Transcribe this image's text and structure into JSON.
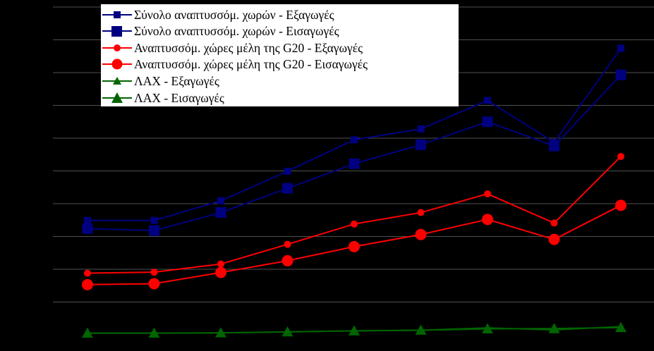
{
  "chart_data": {
    "type": "line",
    "title": "",
    "xlabel": "",
    "ylabel": "",
    "x": [
      "1",
      "2",
      "3",
      "4",
      "5",
      "6",
      "7",
      "8",
      "9"
    ],
    "ylim": [
      0,
      100
    ],
    "grid": true,
    "legend_position": "top-left",
    "series": [
      {
        "name": "Σύνολο αναπτυσσόμ. χωρών - Εξαγωγές",
        "values": [
          34.9,
          34.9,
          40.9,
          49.9,
          59.5,
          62.8,
          71.5,
          58.7,
          87.4
        ],
        "color": "#000080",
        "marker": "square-small"
      },
      {
        "name": "Σύνολο αναπτυσσόμ. χωρών - Εισαγωγές",
        "values": [
          32.4,
          31.8,
          37.3,
          44.7,
          52.2,
          58.0,
          65.0,
          57.6,
          79.3
        ],
        "color": "#000080",
        "marker": "square-large"
      },
      {
        "name": "Αναπτυσσόμ. χώρες μέλη της G20 - Εξαγωγές",
        "values": [
          18.8,
          19.1,
          21.6,
          27.6,
          33.8,
          37.3,
          43.0,
          34.1,
          54.4
        ],
        "color": "#ff0000",
        "marker": "circle-small"
      },
      {
        "name": "Αναπτυσσόμ. χώρες μέλη της G20 - Εισαγωγές",
        "values": [
          15.3,
          15.6,
          19.0,
          22.6,
          26.9,
          30.6,
          35.2,
          29.1,
          39.5
        ],
        "color": "#ff0000",
        "marker": "circle-large"
      },
      {
        "name": "ΛΑΧ - Εξαγωγές",
        "values": [
          0.5,
          0.5,
          0.6,
          0.9,
          1.2,
          1.4,
          2.1,
          1.5,
          2.5
        ],
        "color": "#006400",
        "marker": "triangle-small"
      },
      {
        "name": "ΛΑΧ - Εισαγωγές",
        "values": [
          0.5,
          0.5,
          0.6,
          0.9,
          1.2,
          1.4,
          1.8,
          1.9,
          2.2
        ],
        "color": "#006400",
        "marker": "triangle-large"
      }
    ]
  }
}
